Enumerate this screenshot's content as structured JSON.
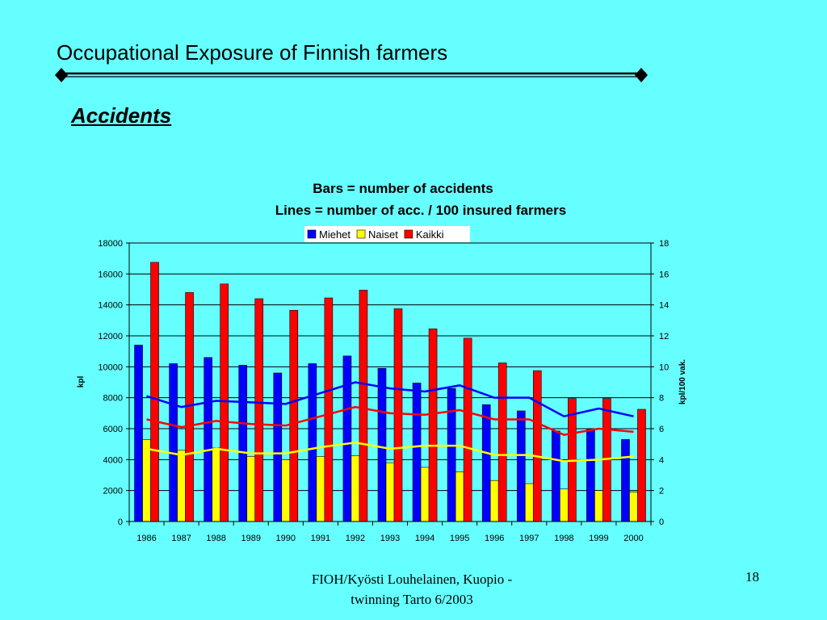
{
  "slide": {
    "title": "Occupational Exposure of Finnish farmers",
    "section_heading": "Accidents",
    "footer_line1": "FIOH/Kyösti Louhelainen, Kuopio -",
    "footer_line2": "twinning Tarto 6/2003",
    "page_number": "18"
  },
  "colors": {
    "background": "#66FFFF",
    "miehet": "#0000FF",
    "naiset": "#FFFF00",
    "kaikki": "#FF0000"
  },
  "chart_data": {
    "type": "bar",
    "title_line1": "Bars = number of accidents",
    "title_line2": "Lines = number of acc.  / 100 insured farmers",
    "ylabel": "kpl",
    "y2label": "kpl/100 vak.",
    "ylim": [
      0,
      18000
    ],
    "y2lim": [
      0,
      18
    ],
    "yticks": [
      "0",
      "2000",
      "4000",
      "6000",
      "8000",
      "10000",
      "12000",
      "14000",
      "16000",
      "18000"
    ],
    "y2ticks": [
      "0",
      "2",
      "4",
      "6",
      "8",
      "10",
      "12",
      "14",
      "16",
      "18"
    ],
    "grid": true,
    "legend_position": "top",
    "categories": [
      "1986",
      "1987",
      "1988",
      "1989",
      "1990",
      "1991",
      "1992",
      "1993",
      "1994",
      "1995",
      "1996",
      "1997",
      "1998",
      "1999",
      "2000"
    ],
    "series": [
      {
        "name": "Miehet",
        "type": "bar",
        "color": "#0000FF",
        "values": [
          11400,
          10200,
          10600,
          10100,
          9600,
          10200,
          10700,
          9900,
          8950,
          8600,
          7550,
          7150,
          5850,
          5950,
          5300
        ]
      },
      {
        "name": "Naiset",
        "type": "bar",
        "color": "#FFFF00",
        "values": [
          5300,
          4600,
          4750,
          4200,
          4000,
          4200,
          4250,
          3800,
          3500,
          3200,
          2650,
          2450,
          2100,
          2000,
          1900
        ]
      },
      {
        "name": "Kaikki",
        "type": "bar",
        "color": "#FF0000",
        "values": [
          16750,
          14800,
          15350,
          14400,
          13650,
          14450,
          14950,
          13750,
          12450,
          11850,
          10250,
          9750,
          7950,
          7950,
          7250
        ]
      }
    ],
    "line_series": [
      {
        "name": "Miehet",
        "color": "#0000FF",
        "values": [
          8.1,
          7.4,
          7.8,
          7.7,
          7.6,
          8.3,
          9.0,
          8.6,
          8.4,
          8.8,
          8.0,
          8.0,
          6.8,
          7.3,
          6.8
        ]
      },
      {
        "name": "Naiset",
        "color": "#FFFF00",
        "values": [
          4.7,
          4.3,
          4.7,
          4.4,
          4.4,
          4.8,
          5.1,
          4.7,
          4.9,
          4.9,
          4.3,
          4.3,
          3.9,
          4.0,
          4.2
        ]
      },
      {
        "name": "Kaikki",
        "color": "#FF0000",
        "values": [
          6.6,
          6.1,
          6.5,
          6.3,
          6.2,
          6.8,
          7.4,
          7.0,
          6.9,
          7.2,
          6.6,
          6.6,
          5.6,
          6.0,
          5.8
        ]
      }
    ]
  }
}
